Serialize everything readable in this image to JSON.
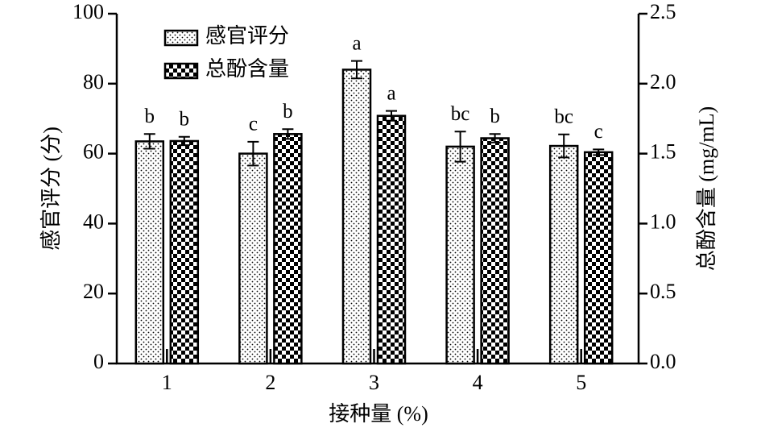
{
  "chart_data": {
    "type": "bar",
    "categories": [
      "1",
      "2",
      "3",
      "4",
      "5"
    ],
    "x_label": "接种量 (%)",
    "y_label": "感官评分 (分)",
    "y2_label": "总酚含量 (mg/mL)",
    "ylim": [
      0,
      100
    ],
    "yticks": [
      0,
      20,
      40,
      60,
      80,
      100
    ],
    "y2lim": [
      0,
      2.5
    ],
    "y2ticks": [
      {
        "value": 0,
        "label": "0.0"
      },
      0.5,
      {
        "value": 1,
        "label": "1.0"
      },
      1.5,
      {
        "value": 2,
        "label": "2.0"
      },
      2.5
    ],
    "legend": "upper left",
    "series": [
      {
        "name": "感官评分",
        "color": "#000000",
        "pattern": "dots",
        "values": [
          63.5,
          60,
          84,
          62,
          62.2
        ],
        "errors": [
          2.1,
          3.4,
          2.5,
          4.3,
          3.3
        ],
        "letters": [
          "b",
          "c",
          "a",
          "bc",
          "bc"
        ]
      },
      {
        "name": "总酚含量",
        "color": "#000000",
        "pattern": "checker",
        "axis": "y2",
        "values": [
          1.59,
          1.64,
          1.77,
          1.61,
          1.51
        ],
        "errors": [
          0.03,
          0.035,
          0.035,
          0.03,
          0.02
        ],
        "letters": [
          "b",
          "b",
          "a",
          "b",
          "c"
        ]
      }
    ]
  }
}
